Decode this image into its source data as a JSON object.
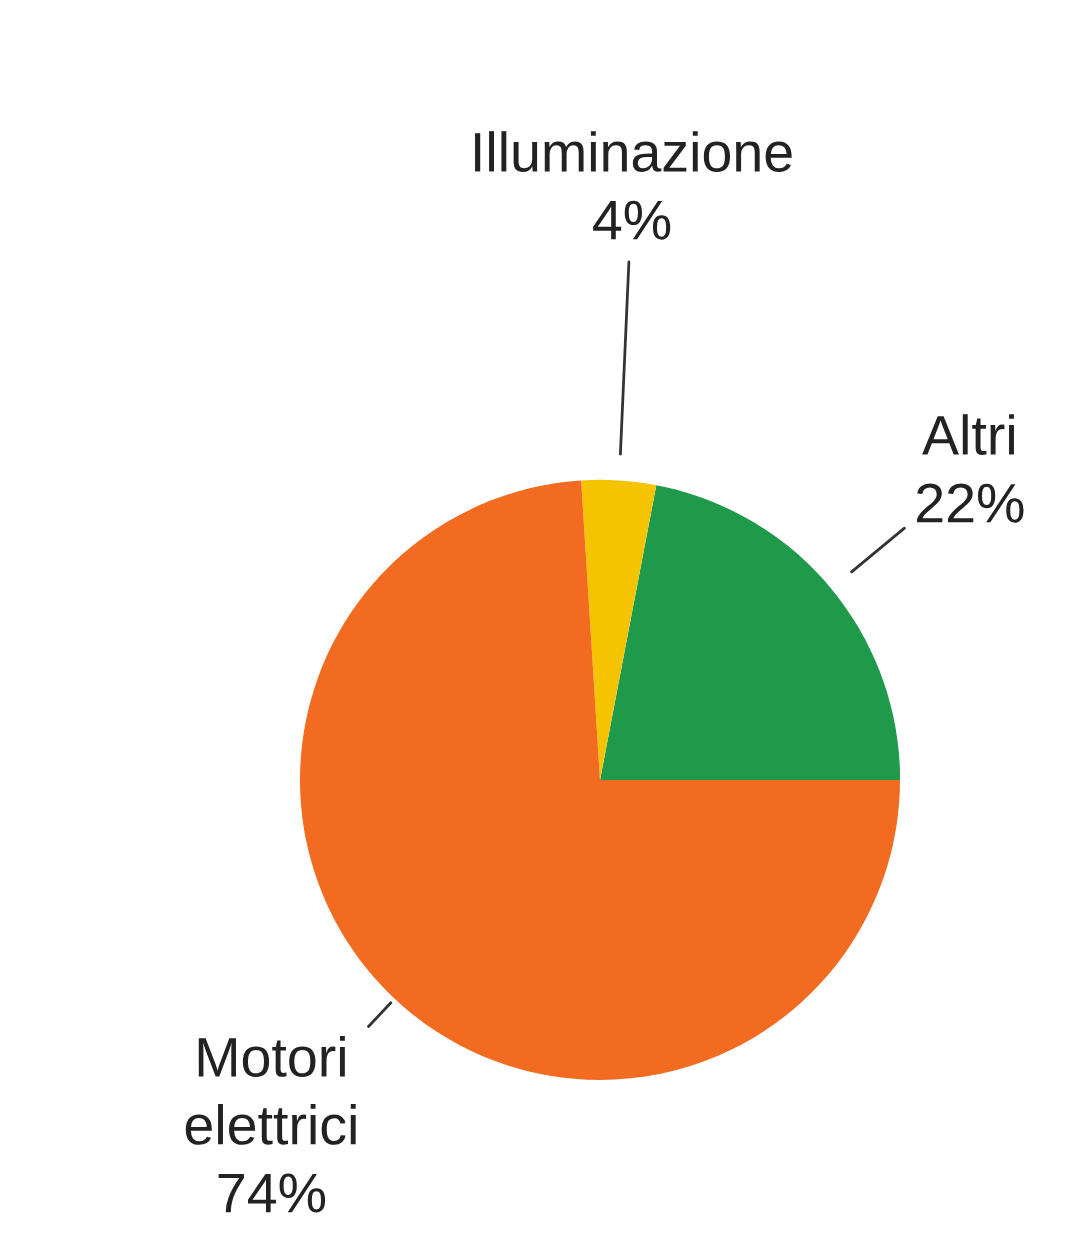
{
  "chart_data": {
    "type": "pie",
    "categories": [
      "Altri",
      "Illuminazione",
      "Motori elettrici"
    ],
    "values": [
      22,
      4,
      74
    ],
    "colors": [
      "#1f9a4b",
      "#f5c400",
      "#f26b21"
    ],
    "value_labels": [
      "22%",
      "4%",
      "74%"
    ]
  }
}
